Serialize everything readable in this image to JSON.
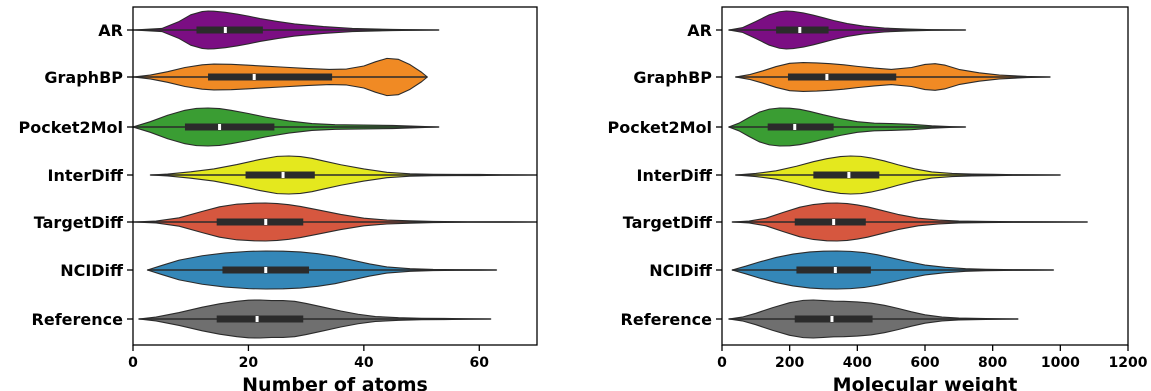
{
  "chart_data": [
    {
      "type": "violin",
      "orientation": "horizontal",
      "title": "",
      "xlabel": "Number of atoms",
      "ylabel": "",
      "xlim": [
        0,
        70
      ],
      "xticks": [
        0,
        20,
        40,
        60
      ],
      "grid": false,
      "categories": [
        "AR",
        "GraphBP",
        "Pocket2Mol",
        "InterDiff",
        "TargetDiff",
        "NCIDiff",
        "Reference"
      ],
      "colors": [
        "#7b0e83",
        "#f08a24",
        "#3a9d33",
        "#e4e81e",
        "#d6573f",
        "#3487b8",
        "#6f6f6f"
      ],
      "series": [
        {
          "category": "AR",
          "min": 0,
          "max": 53,
          "q1": 11,
          "median": 16,
          "q3": 22.5,
          "density_x": [
            0,
            5,
            8,
            10,
            12,
            13,
            14,
            16,
            18,
            20,
            22,
            25,
            28,
            33,
            38,
            45,
            53
          ],
          "density": [
            0.0,
            0.08,
            0.45,
            0.8,
            0.97,
            1.0,
            0.99,
            0.93,
            0.84,
            0.73,
            0.6,
            0.45,
            0.32,
            0.18,
            0.08,
            0.03,
            0.0
          ]
        },
        {
          "category": "GraphBP",
          "min": 0,
          "max": 51,
          "q1": 13,
          "median": 21,
          "q3": 34.5,
          "density_x": [
            0,
            3,
            6,
            9,
            12,
            14,
            17,
            20,
            23,
            26,
            30,
            34,
            37,
            40,
            42,
            44,
            46,
            48,
            50,
            51
          ],
          "density": [
            0.0,
            0.1,
            0.28,
            0.5,
            0.64,
            0.68,
            0.67,
            0.62,
            0.57,
            0.52,
            0.45,
            0.4,
            0.42,
            0.58,
            0.8,
            0.98,
            0.93,
            0.65,
            0.25,
            0.0
          ]
        },
        {
          "category": "Pocket2Mol",
          "min": 0,
          "max": 53,
          "q1": 9,
          "median": 15,
          "q3": 24.5,
          "density_x": [
            0,
            3,
            6,
            9,
            11,
            13,
            15,
            17,
            20,
            23,
            27,
            31,
            35,
            40,
            45,
            50,
            53
          ],
          "density": [
            0.0,
            0.28,
            0.62,
            0.88,
            0.98,
            1.0,
            0.97,
            0.88,
            0.71,
            0.52,
            0.32,
            0.18,
            0.12,
            0.1,
            0.08,
            0.03,
            0.0
          ]
        },
        {
          "category": "InterDiff",
          "min": 3,
          "max": 70,
          "q1": 19.5,
          "median": 26,
          "q3": 31.5,
          "density_x": [
            3,
            6,
            10,
            14,
            18,
            22,
            25,
            27,
            29,
            31,
            33,
            36,
            40,
            44,
            48,
            52,
            56,
            60,
            64,
            70
          ],
          "density": [
            0.0,
            0.05,
            0.17,
            0.32,
            0.55,
            0.82,
            0.98,
            1.0,
            0.97,
            0.88,
            0.74,
            0.54,
            0.32,
            0.14,
            0.06,
            0.04,
            0.03,
            0.03,
            0.01,
            0.0
          ]
        },
        {
          "category": "TargetDiff",
          "min": 0,
          "max": 70,
          "q1": 14.5,
          "median": 23,
          "q3": 29.5,
          "density_x": [
            0,
            4,
            8,
            12,
            15,
            18,
            21,
            23,
            25,
            27,
            29,
            32,
            36,
            40,
            44,
            48,
            52,
            58,
            64,
            70
          ],
          "density": [
            0.0,
            0.05,
            0.22,
            0.56,
            0.8,
            0.94,
            0.99,
            1.0,
            0.97,
            0.91,
            0.82,
            0.64,
            0.4,
            0.2,
            0.1,
            0.06,
            0.03,
            0.01,
            0.01,
            0.0
          ]
        },
        {
          "category": "NCIDiff",
          "min": 2.5,
          "max": 63,
          "q1": 15.5,
          "median": 23,
          "q3": 30.5,
          "density_x": [
            2.5,
            5,
            8,
            12,
            16,
            20,
            23,
            26,
            29,
            32,
            35,
            38,
            41,
            44,
            48,
            52,
            56,
            60,
            63
          ],
          "density": [
            0.0,
            0.24,
            0.52,
            0.75,
            0.9,
            0.98,
            1.0,
            0.99,
            0.95,
            0.86,
            0.72,
            0.52,
            0.32,
            0.16,
            0.07,
            0.03,
            0.02,
            0.01,
            0.0
          ]
        },
        {
          "category": "Reference",
          "min": 1,
          "max": 62,
          "q1": 14.5,
          "median": 21.5,
          "q3": 29.5,
          "density_x": [
            1,
            4,
            8,
            12,
            15,
            18,
            20,
            22,
            24,
            26,
            28,
            30,
            33,
            36,
            39,
            42,
            46,
            50,
            54,
            58,
            62
          ],
          "density": [
            0.0,
            0.1,
            0.34,
            0.62,
            0.8,
            0.93,
            0.99,
            1.0,
            0.97,
            0.97,
            0.93,
            0.82,
            0.62,
            0.42,
            0.25,
            0.13,
            0.07,
            0.04,
            0.03,
            0.01,
            0.0
          ]
        }
      ]
    },
    {
      "type": "violin",
      "orientation": "horizontal",
      "title": "",
      "xlabel": "Molecular weight",
      "ylabel": "",
      "xlim": [
        0,
        1200
      ],
      "xticks": [
        0,
        200,
        400,
        600,
        800,
        1000,
        1200
      ],
      "grid": false,
      "categories": [
        "AR",
        "GraphBP",
        "Pocket2Mol",
        "InterDiff",
        "TargetDiff",
        "NCIDiff",
        "Reference"
      ],
      "colors": [
        "#7b0e83",
        "#f08a24",
        "#3a9d33",
        "#e4e81e",
        "#d6573f",
        "#3487b8",
        "#6f6f6f"
      ],
      "series": [
        {
          "category": "AR",
          "min": 20,
          "max": 720,
          "q1": 160,
          "median": 230,
          "q3": 315,
          "density_x": [
            20,
            60,
            100,
            140,
            170,
            190,
            210,
            240,
            270,
            300,
            330,
            370,
            420,
            480,
            550,
            620,
            720
          ],
          "density": [
            0.0,
            0.12,
            0.45,
            0.8,
            0.96,
            1.0,
            0.98,
            0.9,
            0.78,
            0.64,
            0.5,
            0.34,
            0.2,
            0.1,
            0.05,
            0.02,
            0.0
          ]
        },
        {
          "category": "GraphBP",
          "min": 40,
          "max": 970,
          "q1": 195,
          "median": 310,
          "q3": 515,
          "density_x": [
            40,
            80,
            120,
            160,
            200,
            240,
            280,
            320,
            360,
            400,
            450,
            500,
            560,
            600,
            630,
            660,
            700,
            760,
            820,
            900,
            970
          ],
          "density": [
            0.0,
            0.12,
            0.32,
            0.55,
            0.72,
            0.76,
            0.74,
            0.7,
            0.64,
            0.56,
            0.47,
            0.4,
            0.5,
            0.66,
            0.7,
            0.62,
            0.4,
            0.22,
            0.1,
            0.03,
            0.0
          ]
        },
        {
          "category": "Pocket2Mol",
          "min": 20,
          "max": 720,
          "q1": 135,
          "median": 215,
          "q3": 330,
          "density_x": [
            20,
            50,
            80,
            110,
            140,
            170,
            200,
            230,
            260,
            300,
            350,
            400,
            450,
            500,
            560,
            620,
            680,
            720
          ],
          "density": [
            0.0,
            0.2,
            0.5,
            0.78,
            0.94,
            1.0,
            0.99,
            0.93,
            0.82,
            0.64,
            0.44,
            0.28,
            0.2,
            0.18,
            0.14,
            0.06,
            0.02,
            0.0
          ]
        },
        {
          "category": "InterDiff",
          "min": 40,
          "max": 1000,
          "q1": 270,
          "median": 375,
          "q3": 465,
          "density_x": [
            40,
            100,
            160,
            220,
            270,
            310,
            350,
            380,
            410,
            440,
            480,
            520,
            570,
            620,
            680,
            740,
            800,
            860,
            920,
            1000
          ],
          "density": [
            0.0,
            0.08,
            0.22,
            0.46,
            0.7,
            0.86,
            0.97,
            1.0,
            0.98,
            0.9,
            0.74,
            0.54,
            0.32,
            0.16,
            0.08,
            0.05,
            0.04,
            0.02,
            0.01,
            0.0
          ]
        },
        {
          "category": "TargetDiff",
          "min": 30,
          "max": 1080,
          "q1": 215,
          "median": 330,
          "q3": 425,
          "density_x": [
            30,
            80,
            130,
            180,
            230,
            270,
            310,
            340,
            370,
            400,
            430,
            470,
            520,
            580,
            640,
            700,
            780,
            860,
            960,
            1080
          ],
          "density": [
            0.0,
            0.05,
            0.2,
            0.5,
            0.78,
            0.92,
            0.99,
            1.0,
            0.97,
            0.9,
            0.8,
            0.62,
            0.4,
            0.2,
            0.1,
            0.05,
            0.03,
            0.02,
            0.01,
            0.0
          ]
        },
        {
          "category": "NCIDiff",
          "min": 30,
          "max": 980,
          "q1": 220,
          "median": 335,
          "q3": 440,
          "density_x": [
            30,
            70,
            110,
            160,
            210,
            260,
            300,
            340,
            380,
            420,
            460,
            500,
            550,
            600,
            660,
            720,
            780,
            860,
            920,
            980
          ],
          "density": [
            0.0,
            0.2,
            0.42,
            0.66,
            0.84,
            0.95,
            0.99,
            1.0,
            0.98,
            0.92,
            0.8,
            0.64,
            0.44,
            0.26,
            0.14,
            0.07,
            0.04,
            0.02,
            0.01,
            0.0
          ]
        },
        {
          "category": "Reference",
          "min": 20,
          "max": 875,
          "q1": 215,
          "median": 325,
          "q3": 445,
          "density_x": [
            20,
            60,
            100,
            150,
            200,
            240,
            270,
            300,
            330,
            360,
            400,
            440,
            480,
            520,
            560,
            600,
            650,
            700,
            760,
            820,
            875
          ],
          "density": [
            0.0,
            0.1,
            0.3,
            0.6,
            0.86,
            0.98,
            1.0,
            0.97,
            0.94,
            0.93,
            0.9,
            0.84,
            0.72,
            0.56,
            0.38,
            0.22,
            0.1,
            0.05,
            0.03,
            0.01,
            0.0
          ]
        }
      ]
    }
  ]
}
